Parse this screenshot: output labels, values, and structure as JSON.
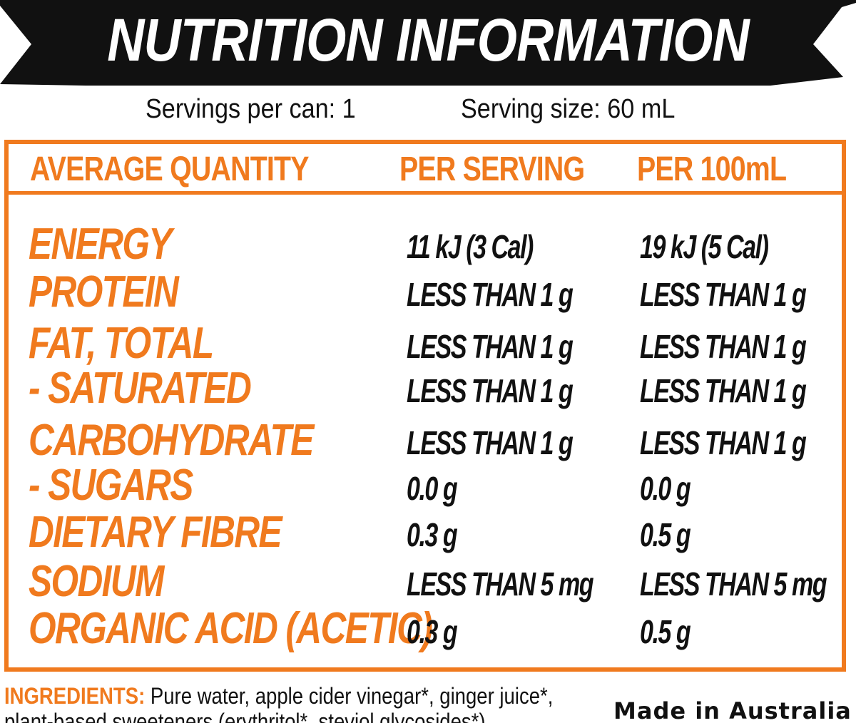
{
  "title": "NUTRITION INFORMATION",
  "servings": {
    "per_can": "Servings per can: 1",
    "size": "Serving size: 60 mL"
  },
  "colors": {
    "accent": "#f07a1e",
    "banner": "#111111",
    "text": "#111111"
  },
  "table": {
    "headers": [
      "AVERAGE QUANTITY",
      "PER SERVING",
      "PER 100mL"
    ],
    "rows": [
      {
        "label": "ENERGY",
        "per_serving": "11 kJ (3 Cal)",
        "per_100ml": "19 kJ (5 Cal)"
      },
      {
        "label": "PROTEIN",
        "per_serving": "LESS THAN 1 g",
        "per_100ml": "LESS THAN 1 g"
      },
      {
        "label": "FAT, TOTAL",
        "per_serving": "LESS THAN 1 g",
        "per_100ml": "LESS THAN 1 g"
      },
      {
        "label": "- SATURATED",
        "per_serving": "LESS THAN 1 g",
        "per_100ml": "LESS THAN 1 g"
      },
      {
        "label": "CARBOHYDRATE",
        "per_serving": "LESS THAN 1 g",
        "per_100ml": "LESS THAN 1 g"
      },
      {
        "label": "- SUGARS",
        "per_serving": "0.0 g",
        "per_100ml": "0.0 g"
      },
      {
        "label": "DIETARY FIBRE",
        "per_serving": "0.3 g",
        "per_100ml": "0.5 g"
      },
      {
        "label": "SODIUM",
        "per_serving": "LESS THAN 5 mg",
        "per_100ml": "LESS THAN 5 mg"
      },
      {
        "label": "ORGANIC ACID (ACETIC)",
        "per_serving": "0.3 g",
        "per_100ml": "0.5 g"
      }
    ]
  },
  "ingredients": {
    "label": "INGREDIENTS:",
    "line1": "Pure water, apple cider vinegar*, ginger juice*,",
    "line2": "plant-based sweeteners (erythritol*, steviol glycosides*)"
  },
  "made_in": "Made in Australia"
}
